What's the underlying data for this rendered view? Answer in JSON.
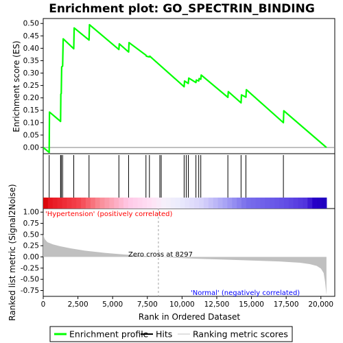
{
  "chart_data": {
    "type": "line",
    "title": "Enrichment plot: GO_SPECTRIN_BINDING",
    "x_range": [
      0,
      21000
    ],
    "x_ticks": [
      0,
      2500,
      5000,
      7500,
      10000,
      12500,
      15000,
      17500,
      20000
    ],
    "x_tick_labels": [
      "0",
      "2,500",
      "5,000",
      "7,500",
      "10,000",
      "12,500",
      "15,000",
      "17,500",
      "20,000"
    ],
    "xlabel": "Rank in Ordered Dataset",
    "dataset_size": 20400,
    "es_panel": {
      "ylabel": "Enrichment score (ES)",
      "ylim": [
        -0.025,
        0.52
      ],
      "y_ticks": [
        0.0,
        0.05,
        0.1,
        0.15,
        0.2,
        0.25,
        0.3,
        0.35,
        0.4,
        0.45,
        0.5
      ],
      "y_tick_labels": [
        "0.00",
        "0.05",
        "0.10",
        "0.15",
        "0.20",
        "0.25",
        "0.30",
        "0.35",
        "0.40",
        "0.45",
        "0.50"
      ],
      "series_name": "Enrichment profile",
      "color": "#00ff00",
      "x": [
        0,
        430,
        450,
        1250,
        1270,
        1300,
        1330,
        1400,
        1440,
        2200,
        2230,
        3300,
        3330,
        5450,
        5480,
        6150,
        6180,
        7400,
        7430,
        7650,
        7680,
        10150,
        10180,
        10450,
        10480,
        11000,
        11030,
        11200,
        11230,
        11350,
        11380,
        13300,
        13330,
        14250,
        14280,
        14600,
        14630,
        17300,
        17330,
        20400
      ],
      "y": [
        0.0,
        -0.02,
        0.143,
        0.105,
        0.215,
        0.218,
        0.325,
        0.328,
        0.438,
        0.398,
        0.482,
        0.433,
        0.495,
        0.395,
        0.418,
        0.385,
        0.423,
        0.372,
        0.368,
        0.365,
        0.368,
        0.245,
        0.268,
        0.258,
        0.28,
        0.262,
        0.272,
        0.268,
        0.278,
        0.275,
        0.292,
        0.202,
        0.225,
        0.18,
        0.212,
        0.203,
        0.233,
        0.1,
        0.148,
        0.0
      ]
    },
    "hits": [
      430,
      1250,
      1300,
      1400,
      2200,
      3300,
      5450,
      6150,
      7400,
      7650,
      8400,
      8500,
      10150,
      10300,
      10450,
      11000,
      11200,
      11350,
      13300,
      14250,
      14600,
      17300
    ],
    "metric_panel": {
      "ylabel": "Ranked list metric (Signal2Noise)",
      "ylim": [
        -0.88,
        1.08
      ],
      "y_ticks": [
        -0.75,
        -0.5,
        -0.25,
        0.0,
        0.25,
        0.5,
        0.75,
        1.0
      ],
      "y_tick_labels": [
        "-0.75",
        "-0.50",
        "-0.25",
        "0.00",
        "0.25",
        "0.50",
        "0.75",
        "1.00"
      ],
      "series_name": "Ranking metric scores",
      "color": "#c0c0c0",
      "x": [
        0,
        100,
        300,
        700,
        1200,
        2000,
        3000,
        4500,
        6000,
        7500,
        8297,
        9500,
        11000,
        13000,
        15000,
        17000,
        18500,
        19200,
        19700,
        20000,
        20200,
        20300,
        20400
      ],
      "y": [
        0.5,
        0.4,
        0.33,
        0.28,
        0.24,
        0.19,
        0.14,
        0.09,
        0.05,
        0.02,
        0.0,
        -0.02,
        -0.04,
        -0.06,
        -0.08,
        -0.1,
        -0.13,
        -0.16,
        -0.2,
        -0.26,
        -0.36,
        -0.55,
        -0.85
      ]
    },
    "annotations": {
      "positive_label": "'Hypertension' (positively correlated)",
      "negative_label": "'Normal' (negatively correlated)",
      "zero_cross_label": "Zero cross at 8297",
      "zero_cross": 8297
    },
    "colors": {
      "positive_label": "#ff0000",
      "negative_label": "#0000ff",
      "enrichment_line": "#00ff00",
      "metric_fill": "#c0c0c0",
      "zero_cross_line": "#a0a0a0"
    },
    "legend": {
      "placement": "bottom",
      "items": [
        "Enrichment profile",
        "Hits",
        "Ranking metric scores"
      ]
    }
  }
}
